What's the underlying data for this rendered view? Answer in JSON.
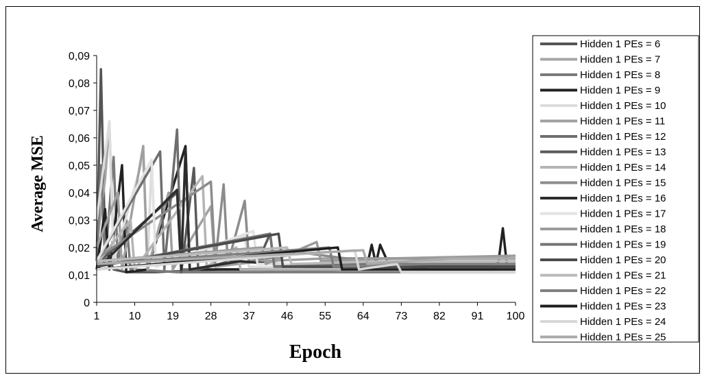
{
  "chart_data": {
    "type": "line",
    "title": "",
    "xlabel": "Epoch",
    "ylabel": "Average MSE",
    "xlim": [
      1,
      100
    ],
    "ylim": [
      0,
      0.09
    ],
    "x_ticks": [
      1,
      10,
      19,
      28,
      37,
      46,
      55,
      64,
      73,
      82,
      91,
      100
    ],
    "y_ticks": [
      0,
      0.01,
      0.02,
      0.03,
      0.04,
      0.05,
      0.06,
      0.07,
      0.08,
      0.09
    ],
    "y_tick_labels": [
      "0",
      "0,01",
      "0,02",
      "0,03",
      "0,04",
      "0,05",
      "0,06",
      "0,07",
      "0,08",
      "0,09"
    ],
    "legend_position": "right",
    "grid": false,
    "series": [
      {
        "name": "Hidden 1 PEs = 6",
        "color": "#555555",
        "points": [
          [
            1,
            0.015
          ],
          [
            2,
            0.085
          ],
          [
            3,
            0.02
          ],
          [
            5,
            0.012
          ],
          [
            8,
            0.011
          ],
          [
            15,
            0.011
          ],
          [
            30,
            0.012
          ],
          [
            50,
            0.012
          ],
          [
            70,
            0.013
          ],
          [
            100,
            0.013
          ]
        ]
      },
      {
        "name": "Hidden 1 PEs = 7",
        "color": "#a6a6a6",
        "points": [
          [
            1,
            0.02
          ],
          [
            3,
            0.045
          ],
          [
            4,
            0.065
          ],
          [
            5,
            0.02
          ],
          [
            10,
            0.012
          ],
          [
            20,
            0.011
          ],
          [
            40,
            0.011
          ],
          [
            60,
            0.012
          ],
          [
            80,
            0.012
          ],
          [
            100,
            0.012
          ]
        ]
      },
      {
        "name": "Hidden 1 PEs = 8",
        "color": "#7a7a7a",
        "points": [
          [
            1,
            0.015
          ],
          [
            2,
            0.05
          ],
          [
            3,
            0.015
          ],
          [
            5,
            0.053
          ],
          [
            6,
            0.015
          ],
          [
            8,
            0.03
          ],
          [
            9,
            0.012
          ],
          [
            20,
            0.011
          ],
          [
            50,
            0.011
          ],
          [
            100,
            0.011
          ]
        ]
      },
      {
        "name": "Hidden 1 PEs = 9",
        "color": "#222222",
        "points": [
          [
            1,
            0.012
          ],
          [
            3,
            0.034
          ],
          [
            4,
            0.012
          ],
          [
            7,
            0.05
          ],
          [
            8,
            0.011
          ],
          [
            13,
            0.012
          ],
          [
            22,
            0.057
          ],
          [
            23,
            0.012
          ],
          [
            30,
            0.012
          ],
          [
            60,
            0.012
          ],
          [
            65,
            0.014
          ],
          [
            66,
            0.021
          ],
          [
            67,
            0.014
          ],
          [
            68,
            0.021
          ],
          [
            70,
            0.014
          ],
          [
            80,
            0.012
          ],
          [
            95,
            0.012
          ],
          [
            96,
            0.015
          ],
          [
            97,
            0.027
          ],
          [
            98,
            0.013
          ],
          [
            100,
            0.013
          ]
        ]
      },
      {
        "name": "Hidden 1 PEs = 10",
        "color": "#dcdcdc",
        "points": [
          [
            1,
            0.03
          ],
          [
            4,
            0.066
          ],
          [
            5,
            0.015
          ],
          [
            12,
            0.053
          ],
          [
            13,
            0.012
          ],
          [
            14,
            0.052
          ],
          [
            15,
            0.013
          ],
          [
            36,
            0.024
          ],
          [
            37,
            0.013
          ],
          [
            70,
            0.012
          ],
          [
            100,
            0.012
          ]
        ]
      },
      {
        "name": "Hidden 1 PEs = 11",
        "color": "#a0a0a0",
        "points": [
          [
            1,
            0.02
          ],
          [
            6,
            0.04
          ],
          [
            7,
            0.012
          ],
          [
            12,
            0.057
          ],
          [
            13,
            0.012
          ],
          [
            18,
            0.04
          ],
          [
            19,
            0.012
          ],
          [
            28,
            0.035
          ],
          [
            29,
            0.013
          ],
          [
            40,
            0.015
          ],
          [
            55,
            0.016
          ],
          [
            70,
            0.016
          ],
          [
            100,
            0.016
          ]
        ]
      },
      {
        "name": "Hidden 1 PEs = 12",
        "color": "#6e6e6e",
        "points": [
          [
            1,
            0.015
          ],
          [
            16,
            0.055
          ],
          [
            17,
            0.012
          ],
          [
            20,
            0.063
          ],
          [
            21,
            0.012
          ],
          [
            25,
            0.012
          ],
          [
            33,
            0.015
          ],
          [
            45,
            0.014
          ],
          [
            60,
            0.013
          ],
          [
            100,
            0.013
          ]
        ]
      },
      {
        "name": "Hidden 1 PEs = 13",
        "color": "#5a5a5a",
        "points": [
          [
            1,
            0.014
          ],
          [
            20,
            0.04
          ],
          [
            21,
            0.011
          ],
          [
            24,
            0.049
          ],
          [
            25,
            0.012
          ],
          [
            30,
            0.014
          ],
          [
            40,
            0.018
          ],
          [
            42,
            0.025
          ],
          [
            43,
            0.013
          ],
          [
            60,
            0.013
          ],
          [
            100,
            0.014
          ]
        ]
      },
      {
        "name": "Hidden 1 PEs = 14",
        "color": "#b4b4b4",
        "points": [
          [
            1,
            0.014
          ],
          [
            9,
            0.03
          ],
          [
            10,
            0.012
          ],
          [
            26,
            0.046
          ],
          [
            27,
            0.013
          ],
          [
            34,
            0.02
          ],
          [
            35,
            0.012
          ],
          [
            55,
            0.012
          ],
          [
            100,
            0.012
          ]
        ]
      },
      {
        "name": "Hidden 1 PEs = 15",
        "color": "#8c8c8c",
        "points": [
          [
            1,
            0.016
          ],
          [
            28,
            0.044
          ],
          [
            29,
            0.014
          ],
          [
            31,
            0.043
          ],
          [
            32,
            0.014
          ],
          [
            36,
            0.037
          ],
          [
            37,
            0.015
          ],
          [
            50,
            0.018
          ],
          [
            60,
            0.016
          ],
          [
            100,
            0.016
          ]
        ]
      },
      {
        "name": "Hidden 1 PEs = 16",
        "color": "#2d2d2d",
        "points": [
          [
            1,
            0.012
          ],
          [
            20,
            0.041
          ],
          [
            21,
            0.012
          ],
          [
            22,
            0.056
          ],
          [
            23,
            0.012
          ],
          [
            35,
            0.015
          ],
          [
            50,
            0.013
          ],
          [
            100,
            0.013
          ]
        ]
      },
      {
        "name": "Hidden 1 PEs = 17",
        "color": "#e2e2e2",
        "points": [
          [
            1,
            0.015
          ],
          [
            14,
            0.052
          ],
          [
            15,
            0.013
          ],
          [
            38,
            0.026
          ],
          [
            39,
            0.014
          ],
          [
            50,
            0.014
          ],
          [
            100,
            0.014
          ]
        ]
      },
      {
        "name": "Hidden 1 PEs = 18",
        "color": "#9b9b9b",
        "points": [
          [
            1,
            0.015
          ],
          [
            40,
            0.02
          ],
          [
            41,
            0.014
          ],
          [
            53,
            0.022
          ],
          [
            54,
            0.015
          ],
          [
            70,
            0.016
          ],
          [
            100,
            0.017
          ]
        ]
      },
      {
        "name": "Hidden 1 PEs = 19",
        "color": "#737373",
        "points": [
          [
            1,
            0.013
          ],
          [
            42,
            0.025
          ],
          [
            43,
            0.013
          ],
          [
            60,
            0.014
          ],
          [
            100,
            0.014
          ]
        ]
      },
      {
        "name": "Hidden 1 PEs = 20",
        "color": "#4b4b4b",
        "points": [
          [
            1,
            0.013
          ],
          [
            44,
            0.025
          ],
          [
            45,
            0.013
          ],
          [
            70,
            0.013
          ],
          [
            100,
            0.013
          ]
        ]
      },
      {
        "name": "Hidden 1 PEs = 21",
        "color": "#b9b9b9",
        "points": [
          [
            1,
            0.015
          ],
          [
            46,
            0.02
          ],
          [
            47,
            0.014
          ],
          [
            70,
            0.015
          ],
          [
            100,
            0.015
          ]
        ]
      },
      {
        "name": "Hidden 1 PEs = 22",
        "color": "#808080",
        "points": [
          [
            1,
            0.014
          ],
          [
            56,
            0.02
          ],
          [
            57,
            0.013
          ],
          [
            80,
            0.014
          ],
          [
            100,
            0.014
          ]
        ]
      },
      {
        "name": "Hidden 1 PEs = 23",
        "color": "#1e1e1e",
        "points": [
          [
            1,
            0.012
          ],
          [
            58,
            0.02
          ],
          [
            59,
            0.012
          ],
          [
            80,
            0.012
          ],
          [
            100,
            0.012
          ]
        ]
      },
      {
        "name": "Hidden 1 PEs = 24",
        "color": "#d7d7d7",
        "points": [
          [
            1,
            0.012
          ],
          [
            62,
            0.019
          ],
          [
            63,
            0.012
          ],
          [
            72,
            0.014
          ],
          [
            73,
            0.011
          ],
          [
            100,
            0.011
          ]
        ]
      },
      {
        "name": "Hidden 1 PEs = 25",
        "color": "#aaaaaa",
        "points": [
          [
            1,
            0.014
          ],
          [
            64,
            0.019
          ],
          [
            65,
            0.014
          ],
          [
            85,
            0.016
          ],
          [
            100,
            0.016
          ]
        ]
      }
    ]
  }
}
